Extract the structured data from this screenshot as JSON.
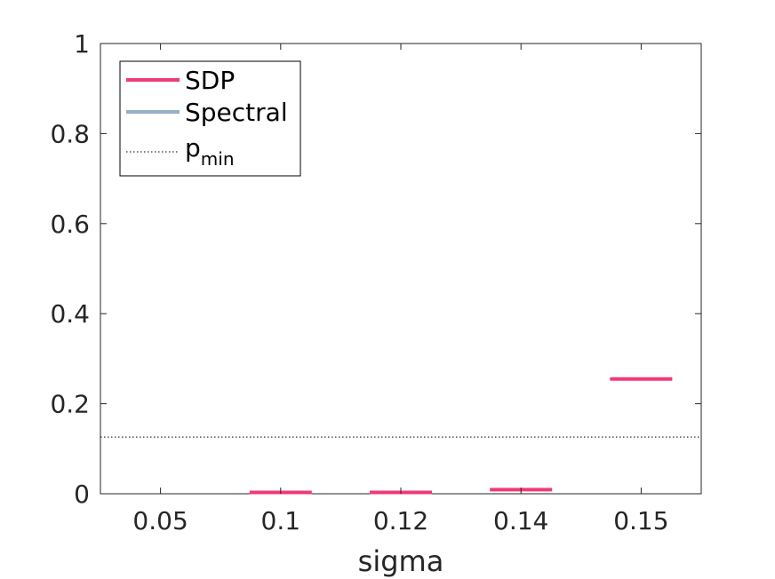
{
  "chart_data": {
    "type": "box",
    "title": "",
    "xlabel": "sigma",
    "ylabel": "",
    "categories": [
      "0.05",
      "0.1",
      "0.12",
      "0.14",
      "0.15"
    ],
    "ylim": [
      0,
      1
    ],
    "yticks": [
      0,
      0.2,
      0.4,
      0.6,
      0.8,
      1
    ],
    "ytick_labels": [
      "0",
      "0.2",
      "0.4",
      "0.6",
      "0.8",
      "1"
    ],
    "series": [
      {
        "name": "SDP",
        "color": "#f0397a",
        "values": [
          null,
          0.003,
          0.003,
          0.009,
          0.255
        ]
      },
      {
        "name": "Spectral",
        "color": "#94afc8",
        "values": [
          null,
          null,
          null,
          null,
          null
        ]
      }
    ],
    "reference_line": {
      "name": "p",
      "subscript": "min",
      "value": 0.126,
      "style": "dotted",
      "color": "#000000"
    },
    "legend": {
      "position": "top-left"
    },
    "grid": false
  }
}
